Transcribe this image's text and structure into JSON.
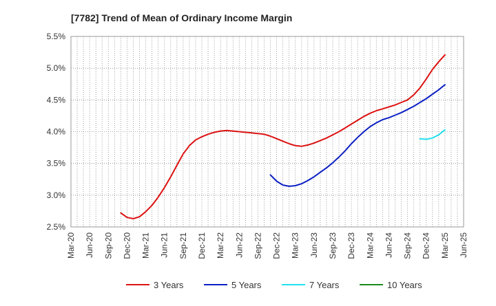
{
  "chart_data": {
    "type": "line",
    "title": "[7782]  Trend of Mean of Ordinary Income Margin",
    "xlabel": "",
    "ylabel": "",
    "x_ticks": [
      "Mar-20",
      "Jun-20",
      "Sep-20",
      "Dec-20",
      "Mar-21",
      "Jun-21",
      "Sep-21",
      "Dec-21",
      "Mar-22",
      "Jun-22",
      "Sep-22",
      "Dec-22",
      "Mar-23",
      "Jun-23",
      "Sep-23",
      "Dec-23",
      "Mar-24",
      "Jun-24",
      "Sep-24",
      "Dec-24",
      "Mar-25",
      "Jun-25"
    ],
    "y_ticks": [
      "2.5%",
      "3.0%",
      "3.5%",
      "4.0%",
      "4.5%",
      "5.0%",
      "5.5%"
    ],
    "ylim": [
      2.5,
      5.5
    ],
    "grid": true,
    "legend_position": "bottom",
    "series": [
      {
        "name": "3 Years",
        "color": "#dd1111",
        "x": [
          "Nov-20",
          "Dec-20",
          "Jan-21",
          "Feb-21",
          "Mar-21",
          "Apr-21",
          "May-21",
          "Jun-21",
          "Jul-21",
          "Aug-21",
          "Sep-21",
          "Oct-21",
          "Nov-21",
          "Dec-21",
          "Jan-22",
          "Feb-22",
          "Mar-22",
          "Apr-22",
          "May-22",
          "Jun-22",
          "Jul-22",
          "Aug-22",
          "Sep-22",
          "Oct-22",
          "Nov-22",
          "Dec-22",
          "Jan-23",
          "Feb-23",
          "Mar-23",
          "Apr-23",
          "May-23",
          "Jun-23",
          "Jul-23",
          "Aug-23",
          "Sep-23",
          "Oct-23",
          "Nov-23",
          "Dec-23",
          "Jan-24",
          "Feb-24",
          "Mar-24",
          "Apr-24",
          "May-24",
          "Jun-24",
          "Jul-24",
          "Aug-24",
          "Sep-24",
          "Oct-24",
          "Nov-24",
          "Dec-24",
          "Jan-25",
          "Feb-25",
          "Mar-25"
        ],
        "values": [
          2.72,
          2.65,
          2.63,
          2.66,
          2.74,
          2.84,
          2.97,
          3.12,
          3.29,
          3.47,
          3.65,
          3.78,
          3.87,
          3.92,
          3.96,
          3.99,
          4.01,
          4.02,
          4.01,
          4.0,
          3.99,
          3.98,
          3.97,
          3.96,
          3.93,
          3.89,
          3.85,
          3.81,
          3.78,
          3.77,
          3.79,
          3.82,
          3.86,
          3.9,
          3.95,
          4.0,
          4.06,
          4.12,
          4.18,
          4.24,
          4.29,
          4.33,
          4.36,
          4.39,
          4.42,
          4.46,
          4.5,
          4.58,
          4.69,
          4.83,
          4.98,
          5.1,
          5.21
        ]
      },
      {
        "name": "5 Years",
        "color": "#0b1fc4",
        "x": [
          "Nov-22",
          "Dec-22",
          "Jan-23",
          "Feb-23",
          "Mar-23",
          "Apr-23",
          "May-23",
          "Jun-23",
          "Jul-23",
          "Aug-23",
          "Sep-23",
          "Oct-23",
          "Nov-23",
          "Dec-23",
          "Jan-24",
          "Feb-24",
          "Mar-24",
          "Apr-24",
          "May-24",
          "Jun-24",
          "Jul-24",
          "Aug-24",
          "Sep-24",
          "Oct-24",
          "Nov-24",
          "Dec-24",
          "Jan-25",
          "Feb-25",
          "Mar-25"
        ],
        "values": [
          3.32,
          3.22,
          3.16,
          3.14,
          3.15,
          3.18,
          3.23,
          3.29,
          3.36,
          3.43,
          3.51,
          3.6,
          3.7,
          3.81,
          3.91,
          4.0,
          4.08,
          4.14,
          4.19,
          4.22,
          4.26,
          4.3,
          4.35,
          4.4,
          4.46,
          4.52,
          4.59,
          4.66,
          4.74
        ]
      },
      {
        "name": "7 Years",
        "color": "#22e0ee",
        "x": [
          "Nov-24",
          "Dec-24",
          "Jan-25",
          "Feb-25",
          "Mar-25"
        ],
        "values": [
          3.89,
          3.88,
          3.9,
          3.95,
          4.03
        ]
      },
      {
        "name": "10 Years",
        "color": "#1a8a1a",
        "x": [],
        "values": []
      }
    ]
  }
}
